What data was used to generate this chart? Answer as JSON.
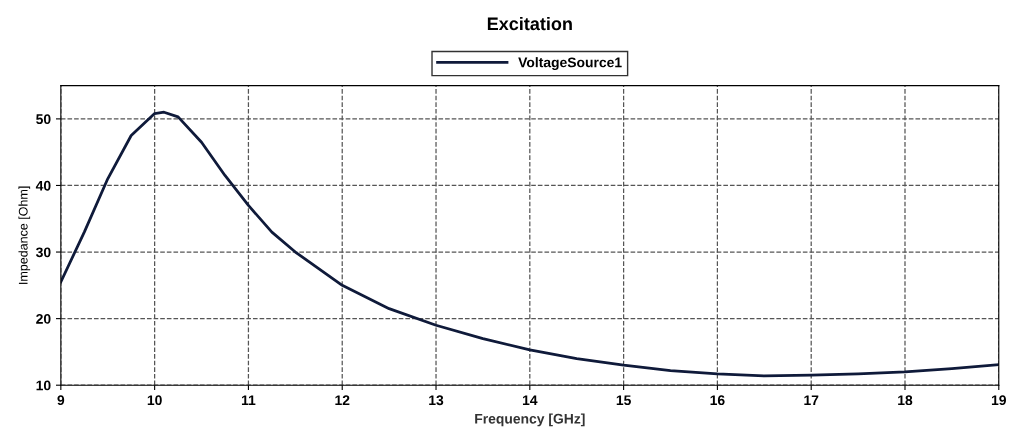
{
  "chart_data": {
    "type": "line",
    "title": "Excitation",
    "xlabel": "Frequency [GHz]",
    "ylabel": "Impedance [Ohm]",
    "x": [
      9,
      9.25,
      9.5,
      9.75,
      10,
      10.1,
      10.25,
      10.5,
      10.75,
      11,
      11.25,
      11.5,
      12,
      12.5,
      13,
      13.5,
      14,
      14.5,
      15,
      15.5,
      16,
      16.5,
      17,
      17.5,
      18,
      18.5,
      19
    ],
    "series": [
      {
        "name": "VoltageSource1",
        "color": "#0f1a3a",
        "values": [
          25.5,
          33,
          41,
          47.5,
          50.8,
          51,
          50.3,
          46.5,
          41.5,
          37,
          33,
          30,
          25,
          21.5,
          19,
          17,
          15.3,
          14,
          13,
          12.2,
          11.7,
          11.4,
          11.5,
          11.7,
          12,
          12.5,
          13.1
        ]
      }
    ],
    "xlim": [
      9,
      19
    ],
    "xticks": [
      9,
      10,
      11,
      12,
      13,
      14,
      15,
      16,
      17,
      18,
      19
    ],
    "ylim": [
      10,
      55
    ],
    "yticks": [
      10,
      20,
      30,
      40,
      50
    ],
    "grid": true,
    "legend": "top",
    "line_style": "solid",
    "marker": "none"
  }
}
